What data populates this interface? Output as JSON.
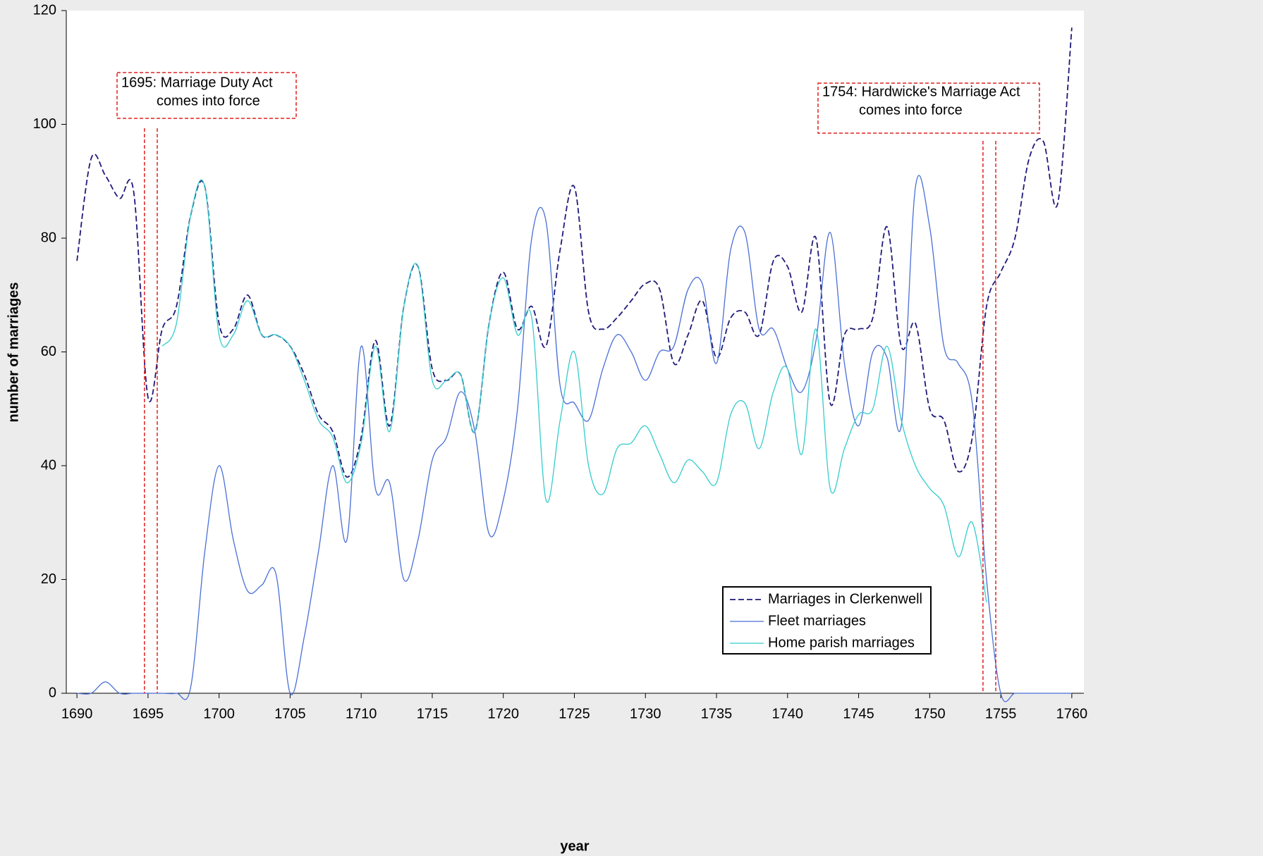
{
  "chart_data": {
    "type": "line",
    "xlabel": "year",
    "ylabel": "number of marriages",
    "xlim": [
      1689.25,
      1760.85
    ],
    "ylim": [
      0,
      120
    ],
    "xticks": [
      1690,
      1695,
      1700,
      1705,
      1710,
      1715,
      1720,
      1725,
      1730,
      1735,
      1740,
      1745,
      1750,
      1755,
      1760
    ],
    "yticks": [
      0,
      20,
      40,
      60,
      80,
      100,
      120
    ],
    "grid": false,
    "legend": "lower right",
    "x": [
      1690,
      1691,
      1692,
      1693,
      1694,
      1695,
      1696,
      1697,
      1698,
      1699,
      1700,
      1701,
      1702,
      1703,
      1704,
      1705,
      1706,
      1707,
      1708,
      1709,
      1710,
      1711,
      1712,
      1713,
      1714,
      1715,
      1716,
      1717,
      1718,
      1719,
      1720,
      1721,
      1722,
      1723,
      1724,
      1725,
      1726,
      1727,
      1728,
      1729,
      1730,
      1731,
      1732,
      1733,
      1734,
      1735,
      1736,
      1737,
      1738,
      1739,
      1740,
      1741,
      1742,
      1743,
      1744,
      1745,
      1746,
      1747,
      1748,
      1749,
      1750,
      1751,
      1752,
      1753,
      1754,
      1755,
      1756,
      1757,
      1758,
      1759,
      1760
    ],
    "series": [
      {
        "name": "Marriages in Clerkenwell",
        "color": "#1f1a7a",
        "dash": true,
        "values": [
          76,
          94,
          91,
          87,
          88,
          52,
          64,
          68,
          84,
          89,
          65,
          64,
          70,
          63,
          63,
          61,
          56,
          49,
          46,
          38,
          45,
          62,
          47,
          68,
          75,
          57,
          55,
          56,
          46,
          65,
          74,
          64,
          68,
          61,
          78,
          89,
          67,
          64,
          66,
          69,
          72,
          71,
          58,
          63,
          69,
          59,
          66,
          67,
          63,
          76,
          75,
          67,
          80,
          51,
          63,
          64,
          66,
          82,
          61,
          65,
          50,
          48,
          39,
          45,
          68,
          74,
          80,
          94,
          97,
          86,
          117
        ]
      },
      {
        "name": "Fleet marriages",
        "color": "#4a6fd6",
        "dash": false,
        "values": [
          0,
          0,
          2,
          0,
          0,
          0,
          0,
          0,
          1,
          25,
          40,
          27,
          18,
          19,
          21,
          0,
          10,
          25,
          40,
          27,
          61,
          36,
          37,
          20,
          27,
          41,
          45,
          53,
          46,
          28,
          34,
          50,
          80,
          83,
          54,
          51,
          48,
          57,
          63,
          60,
          55,
          60,
          61,
          71,
          72,
          58,
          78,
          81,
          64,
          64,
          57,
          53,
          62,
          81,
          58,
          47,
          60,
          59,
          47,
          89,
          82,
          61,
          58,
          51,
          20,
          0,
          0,
          0,
          0,
          0,
          0
        ]
      },
      {
        "name": "Home parish marriages",
        "color": "#33cccc",
        "dash": false,
        "values": [
          null,
          null,
          null,
          null,
          null,
          null,
          61,
          65,
          84,
          89,
          63,
          63,
          69,
          63,
          63,
          61,
          55,
          48,
          45,
          37,
          44,
          61,
          46,
          68,
          75,
          55,
          55,
          56,
          46,
          65,
          73,
          63,
          66,
          34,
          48,
          60,
          40,
          35,
          43,
          44,
          47,
          42,
          37,
          41,
          39,
          37,
          49,
          51,
          43,
          53,
          57,
          42,
          64,
          36,
          43,
          49,
          50,
          61,
          48,
          40,
          36,
          33,
          24,
          30,
          16,
          null,
          null,
          null,
          null,
          null,
          null
        ]
      }
    ],
    "annotations": [
      {
        "text": [
          "1695: Marriage Duty Act",
          "comes into force"
        ],
        "x": [
          1694.75,
          1695.65
        ]
      },
      {
        "text": [
          "1754: Hardwicke's Marriage Act",
          "comes into force"
        ],
        "x": [
          1753.75,
          1754.65
        ]
      }
    ]
  }
}
